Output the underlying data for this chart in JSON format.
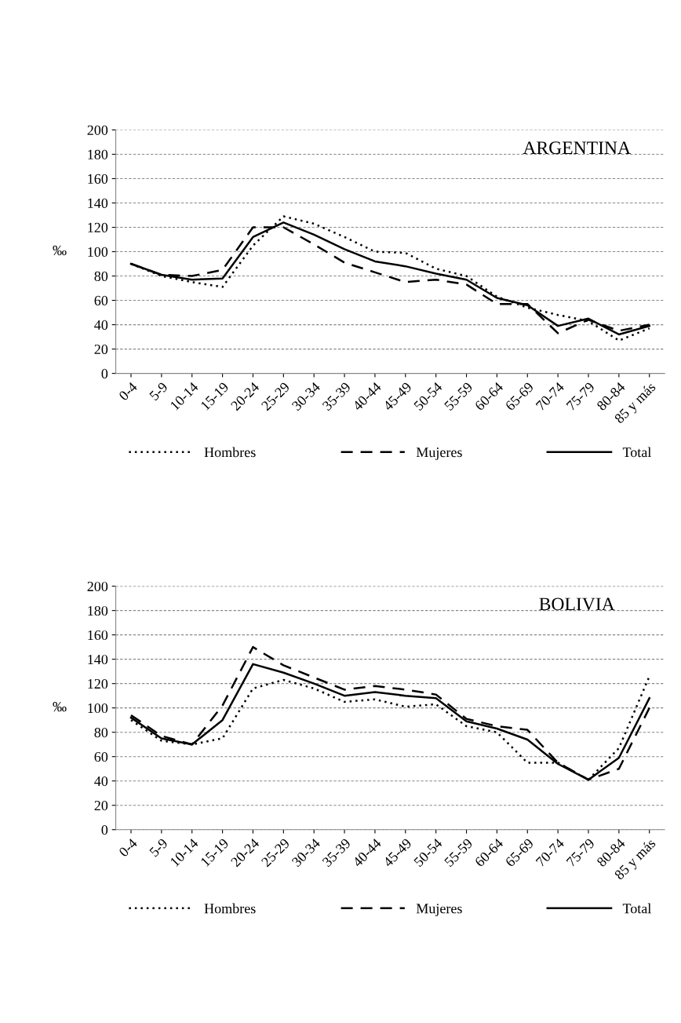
{
  "chart_data": [
    {
      "type": "line",
      "title": "ARGENTINA",
      "ylabel": "‰",
      "categories": [
        "0-4",
        "5-9",
        "10-14",
        "15-19",
        "20-24",
        "25-29",
        "30-34",
        "35-39",
        "40-44",
        "45-49",
        "50-54",
        "55-59",
        "60-64",
        "65-69",
        "70-74",
        "75-79",
        "80-84",
        "85 y más"
      ],
      "series": [
        {
          "name": "Hombres",
          "color": "#000000",
          "line_style": "dotted",
          "values": [
            90,
            80,
            75,
            71,
            105,
            129,
            123,
            112,
            100,
            99,
            86,
            80,
            63,
            54,
            48,
            43,
            27,
            37
          ]
        },
        {
          "name": "Mujeres",
          "color": "#000000",
          "line_style": "dashed",
          "values": [
            90,
            81,
            80,
            85,
            120,
            120,
            106,
            91,
            83,
            75,
            77,
            73,
            57,
            57,
            33,
            44,
            35,
            40
          ]
        },
        {
          "name": "Total",
          "color": "#000000",
          "line_style": "solid",
          "values": [
            90,
            81,
            77,
            78,
            112,
            124,
            114,
            102,
            92,
            88,
            82,
            77,
            62,
            56,
            39,
            45,
            32,
            39
          ]
        }
      ],
      "ylim": [
        0,
        200
      ],
      "yticks": [
        0,
        20,
        40,
        60,
        80,
        100,
        120,
        140,
        160,
        180,
        200
      ],
      "grid": "y",
      "legend": "bottom"
    },
    {
      "type": "line",
      "title": "BOLIVIA",
      "ylabel": "‰",
      "categories": [
        "0-4",
        "5-9",
        "10-14",
        "15-19",
        "20-24",
        "25-29",
        "30-34",
        "35-39",
        "40-44",
        "45-49",
        "50-54",
        "55-59",
        "60-64",
        "65-69",
        "70-74",
        "75-79",
        "80-84",
        "85 y más"
      ],
      "series": [
        {
          "name": "Hombres",
          "color": "#000000",
          "line_style": "dotted",
          "values": [
            90,
            73,
            70,
            75,
            116,
            123,
            116,
            105,
            107,
            101,
            103,
            85,
            80,
            55,
            55,
            41,
            67,
            126
          ]
        },
        {
          "name": "Mujeres",
          "color": "#000000",
          "line_style": "dashed",
          "values": [
            94,
            77,
            70,
            102,
            150,
            135,
            125,
            115,
            118,
            115,
            111,
            91,
            85,
            82,
            55,
            41,
            50,
            100
          ]
        },
        {
          "name": "Total",
          "color": "#000000",
          "line_style": "solid",
          "values": [
            92,
            75,
            70,
            90,
            136,
            129,
            120,
            110,
            113,
            110,
            108,
            89,
            83,
            74,
            54,
            41,
            59,
            108
          ]
        }
      ],
      "ylim": [
        0,
        200
      ],
      "yticks": [
        0,
        20,
        40,
        60,
        80,
        100,
        120,
        140,
        160,
        180,
        200
      ],
      "grid": "y",
      "legend": "bottom"
    }
  ]
}
